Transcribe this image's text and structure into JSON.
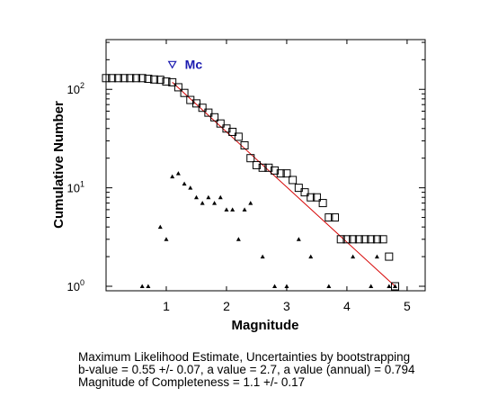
{
  "chart_data": {
    "type": "scatter",
    "xlabel": "Magnitude",
    "ylabel": "Cumulative Number",
    "xlim": [
      0,
      5.3
    ],
    "ylim": [
      0.9,
      320
    ],
    "yscale": "log",
    "x_ticks": [
      "1",
      "2",
      "3",
      "4",
      "5"
    ],
    "y_ticks": [
      "10^0",
      "10^1",
      "10^2"
    ],
    "grid": false,
    "mc_marker": {
      "label": "Mc",
      "x": 1.1,
      "y": 180,
      "color": "#1a1ab0"
    },
    "series": [
      {
        "marker": "open-square",
        "x": [
          0.0,
          0.1,
          0.2,
          0.3,
          0.4,
          0.5,
          0.6,
          0.7,
          0.8,
          0.9,
          1.0,
          1.1,
          1.2,
          1.3,
          1.4,
          1.5,
          1.6,
          1.7,
          1.8,
          1.9,
          2.0,
          2.1,
          2.2,
          2.3,
          2.4,
          2.5,
          2.6,
          2.7,
          2.8,
          2.9,
          3.0,
          3.1,
          3.2,
          3.3,
          3.4,
          3.5,
          3.6,
          3.7,
          3.8,
          3.9,
          4.0,
          4.1,
          4.2,
          4.3,
          4.4,
          4.5,
          4.6,
          4.7,
          4.8
        ],
        "y": [
          130,
          130,
          130,
          130,
          130,
          130,
          130,
          128,
          126,
          125,
          120,
          118,
          105,
          92,
          78,
          72,
          65,
          58,
          52,
          45,
          40,
          37,
          33,
          27,
          20,
          17,
          16,
          16,
          15,
          14,
          14,
          12,
          10,
          9,
          8,
          8,
          7,
          5,
          5,
          3,
          3,
          3,
          3,
          3,
          3,
          3,
          3,
          2,
          1
        ]
      },
      {
        "marker": "small-triangle",
        "x": [
          0.6,
          0.7,
          0.9,
          1.0,
          1.1,
          1.2,
          1.3,
          1.4,
          1.5,
          1.6,
          1.7,
          1.8,
          1.9,
          2.0,
          2.1,
          2.2,
          2.3,
          2.4,
          2.6,
          2.8,
          3.0,
          3.2,
          3.4,
          3.7,
          4.1,
          4.4,
          4.5,
          4.7,
          4.8
        ],
        "y": [
          1,
          1,
          4,
          3,
          13,
          14,
          11,
          10,
          8,
          7,
          8,
          7,
          8,
          6,
          6,
          3,
          6,
          7,
          2,
          1,
          1,
          3,
          2,
          1,
          2,
          1,
          2,
          1,
          1
        ]
      },
      {
        "marker": "line",
        "color": "#d60000",
        "x": [
          1.1,
          4.8
        ],
        "y": [
          118,
          1
        ]
      }
    ]
  },
  "caption": {
    "line1": "Maximum Likelihood Estimate, Uncertainties by bootstrapping",
    "line2": "b-value = 0.55 +/- 0.07,  a value = 2.7,  a value (annual) = 0.794",
    "line3": "Magnitude of Completeness = 1.1 +/- 0.17"
  }
}
